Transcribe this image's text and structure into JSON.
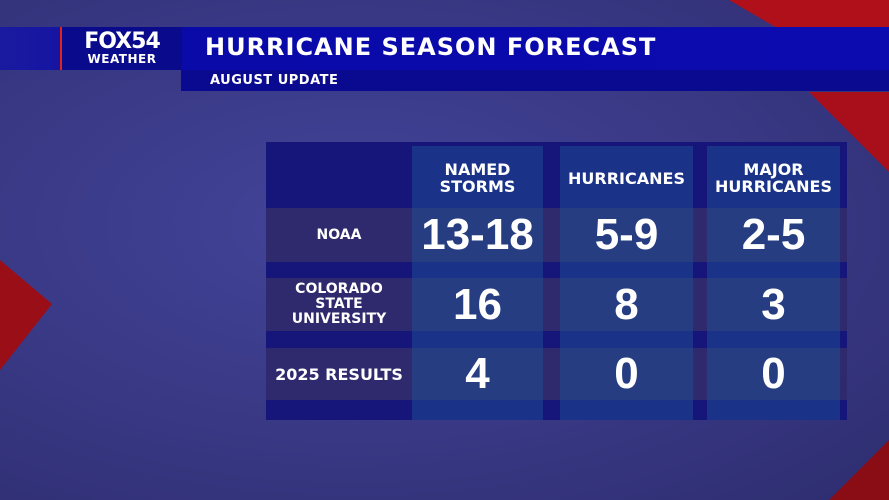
{
  "brand": {
    "logo_top": "FOX54",
    "logo_bottom": "WEATHER"
  },
  "header": {
    "title": "HURRICANE SEASON FORECAST",
    "subtitle": "AUGUST UPDATE"
  },
  "table": {
    "columns": [
      "NAMED STORMS",
      "HURRICANES",
      "MAJOR HURRICANES"
    ],
    "rows": [
      {
        "label": "NOAA",
        "values": [
          "13-18",
          "5-9",
          "2-5"
        ]
      },
      {
        "label": "COLORADO STATE UNIVERSITY",
        "values": [
          "16",
          "8",
          "3"
        ]
      },
      {
        "label": "2025 RESULTS",
        "values": [
          "4",
          "0",
          "0"
        ]
      }
    ]
  },
  "colors": {
    "accent_red": "#e2231a",
    "bar_blue": "#0b0bb0",
    "table_bg": "#16167a"
  }
}
